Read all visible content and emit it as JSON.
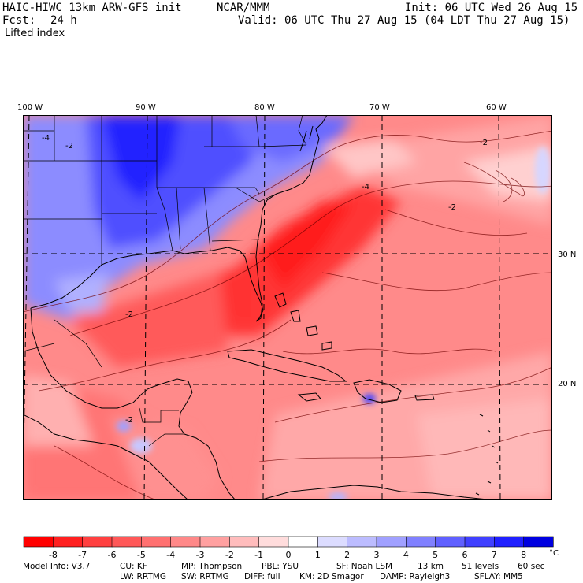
{
  "header": {
    "model": "HAIC-HIWC 13km ARW-GFS init",
    "center": "NCAR/MMM",
    "init": "Init: 06 UTC Wed 26 Aug 15",
    "fcst_label": "Fcst:",
    "fcst_value": "24 h",
    "valid": "Valid: 06 UTC Thu 27 Aug 15 (04 LDT Thu 27 Aug 15)",
    "field": "Lifted index"
  },
  "map": {
    "lon_labels": [
      "100 W",
      "90 W",
      "80 W",
      "70 W",
      "60 W"
    ],
    "lat_labels": [
      "30 N",
      "20 N"
    ],
    "contour_labels": [
      "-4",
      "-2",
      "-2",
      "-2",
      "-4",
      "-2",
      "-2"
    ]
  },
  "colorbar": {
    "unit": "°C",
    "ticks": [
      "-8",
      "-7",
      "-6",
      "-5",
      "-4",
      "-3",
      "-2",
      "-1",
      "0",
      "1",
      "2",
      "3",
      "4",
      "5",
      "6",
      "7",
      "8"
    ],
    "colors": [
      "#ff0000",
      "#ff2020",
      "#ff4040",
      "#ff5858",
      "#ff7070",
      "#ff8888",
      "#ffa0a0",
      "#ffbcbc",
      "#ffdcdc",
      "#ffffff",
      "#dcdcff",
      "#bcbcff",
      "#a0a0ff",
      "#8080ff",
      "#6060ff",
      "#4040ff",
      "#2020ff",
      "#0000e0"
    ]
  },
  "footer": {
    "line1": [
      "Model Info: V3.7",
      "CU: KF",
      "MP: Thompson",
      "PBL: YSU",
      "SF: Noah LSM",
      "13 km",
      "51 levels",
      "60 sec"
    ],
    "line2": [
      "LW: RRTMG",
      "SW: RRTMG",
      "DIFF: full",
      "KM: 2D Smagor",
      "DAMP: Rayleigh3",
      "SFLAY: MM5"
    ]
  }
}
